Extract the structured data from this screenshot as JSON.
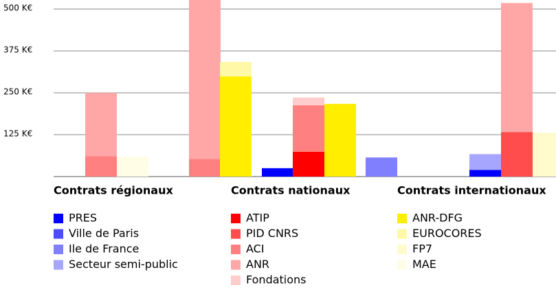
{
  "chart_data": {
    "type": "stacked-bar",
    "categories": [
      null,
      null,
      null,
      null,
      null,
      null,
      null,
      null,
      null,
      null,
      null
    ],
    "ylim": [
      0,
      527
    ],
    "yticks": [
      {
        "value": 125,
        "label": "125 K€"
      },
      {
        "value": 250,
        "label": "250 K€"
      },
      {
        "value": 375,
        "label": "375 K€"
      },
      {
        "value": 500,
        "label": "500 K€"
      }
    ],
    "grid": true,
    "series_groups": [
      {
        "title": "Contrats régionaux",
        "series": [
          {
            "name": "PRES",
            "color": "#0000ff",
            "values": [
              null,
              null,
              null,
              null,
              25,
              null,
              null,
              null,
              20,
              null,
              null
            ]
          },
          {
            "name": "Ville de Paris",
            "color": "#4d4dff",
            "values": [
              null,
              null,
              null,
              null,
              null,
              null,
              null,
              null,
              null,
              null,
              null
            ]
          },
          {
            "name": "Ile de France",
            "color": "#8080ff",
            "values": [
              null,
              null,
              null,
              null,
              null,
              null,
              null,
              57,
              null,
              null,
              null
            ]
          },
          {
            "name": "Secteur semi-public",
            "color": "#a6a6ff",
            "values": [
              null,
              null,
              null,
              null,
              null,
              null,
              null,
              null,
              47,
              null,
              null
            ]
          }
        ]
      },
      {
        "title": "Contrats nationaux",
        "series": [
          {
            "name": "ATIP",
            "color": "#ff0000",
            "values": [
              null,
              null,
              null,
              null,
              null,
              74,
              null,
              null,
              null,
              null,
              null
            ]
          },
          {
            "name": "PID CNRS",
            "color": "#ff4d4d",
            "values": [
              null,
              null,
              null,
              null,
              null,
              null,
              null,
              null,
              null,
              133,
              null
            ]
          },
          {
            "name": "ACI",
            "color": "#ff8080",
            "values": [
              61,
              null,
              53,
              null,
              null,
              139,
              null,
              null,
              null,
              null,
              null
            ]
          },
          {
            "name": "ANR",
            "color": "#ffa6a6",
            "values": [
              189,
              null,
              500,
              null,
              null,
              null,
              null,
              null,
              null,
              385,
              null
            ]
          },
          {
            "name": "Fondations",
            "color": "#ffcccc",
            "values": [
              null,
              null,
              null,
              null,
              null,
              23,
              null,
              null,
              null,
              null,
              null
            ]
          }
        ]
      },
      {
        "title": "Contrats internationaux",
        "series": [
          {
            "name": "ANR-DFG",
            "color": "#ffee00",
            "values": [
              null,
              null,
              null,
              299,
              null,
              null,
              217,
              null,
              null,
              null,
              null
            ]
          },
          {
            "name": "EUROCORES",
            "color": "#fff8a6",
            "values": [
              null,
              null,
              null,
              43,
              null,
              null,
              null,
              null,
              null,
              null,
              null
            ]
          },
          {
            "name": "FP7",
            "color": "#fffbcc",
            "values": [
              null,
              null,
              null,
              null,
              null,
              null,
              null,
              null,
              null,
              null,
              131
            ]
          },
          {
            "name": "MAE",
            "color": "#fffde6",
            "values": [
              null,
              59,
              null,
              null,
              null,
              null,
              null,
              null,
              null,
              null,
              null
            ]
          }
        ]
      }
    ]
  }
}
